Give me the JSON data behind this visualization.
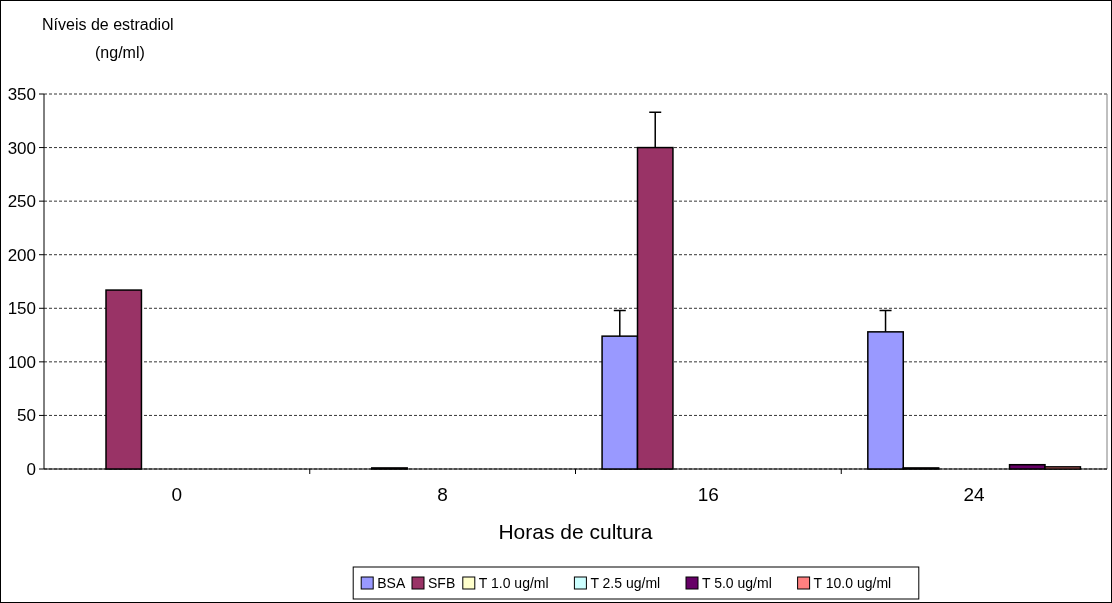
{
  "chart_data": {
    "type": "bar",
    "ylabel": "Níveis de estradiol (ng/ml)",
    "xlabel": "Horas de cultura",
    "categories": [
      "0",
      "8",
      "16",
      "24"
    ],
    "series": [
      {
        "name": "BSA",
        "color": "#9999ff",
        "values": [
          0,
          0,
          124,
          128
        ],
        "errors": [
          null,
          null,
          24,
          20
        ]
      },
      {
        "name": "SFB",
        "color": "#993366",
        "values": [
          167,
          1,
          300,
          1
        ],
        "errors": [
          null,
          null,
          33,
          null
        ]
      },
      {
        "name": "T 1.0 ug/ml",
        "color": "#ffffcc",
        "values": [
          0,
          0,
          0,
          0
        ]
      },
      {
        "name": "T 2.5 ug/ml",
        "color": "#ccffff",
        "values": [
          0,
          0,
          0,
          0
        ]
      },
      {
        "name": "T 5.0 ug/ml",
        "color": "#660066",
        "values": [
          0,
          0,
          0,
          4
        ]
      },
      {
        "name": "T 10.0 ug/ml",
        "color": "#ff8080",
        "values": [
          0,
          0,
          0,
          2
        ]
      }
    ],
    "ylim": [
      0,
      350
    ],
    "yticks": [
      0,
      50,
      100,
      150,
      200,
      250,
      300,
      350
    ],
    "grid": "y",
    "legend": "bottom"
  }
}
